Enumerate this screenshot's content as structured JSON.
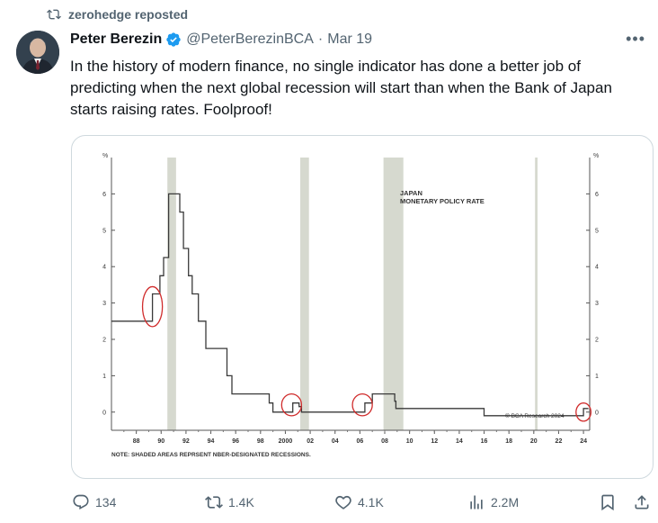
{
  "repost": {
    "text": "zerohedge reposted",
    "icon": "repost-icon"
  },
  "author": {
    "name": "Peter Berezin",
    "handle": "@PeterBerezinBCA",
    "separator": "·",
    "date": "Mar 19",
    "verified_color": "#1d9bf0"
  },
  "tweet": {
    "text": "In the history of modern finance, no single indicator has done a better job of predicting when the next global recession will start than when the Bank of Japan starts raising rates. Foolproof!"
  },
  "more_icon": "more-icon",
  "chart_data": {
    "type": "line",
    "title": "JAPAN MONETARY POLICY RATE",
    "unit_label": "%",
    "source": "© BCA Research 2024",
    "note": "NOTE: SHADED AREAS REPRSENT NBER-DESIGNATED RECESSIONS.",
    "xlim": [
      1986,
      2024.5
    ],
    "ylim": [
      -0.5,
      7
    ],
    "y_ticks": [
      0,
      1,
      2,
      3,
      4,
      5,
      6
    ],
    "x_tick_labels": [
      "88",
      "90",
      "92",
      "94",
      "96",
      "98",
      "2000",
      "02",
      "04",
      "06",
      "08",
      "10",
      "12",
      "14",
      "16",
      "18",
      "20",
      "22",
      "24"
    ],
    "x_tick_years": [
      1988,
      1990,
      1992,
      1994,
      1996,
      1998,
      2000,
      2002,
      2004,
      2006,
      2008,
      2010,
      2012,
      2014,
      2016,
      2018,
      2020,
      2022,
      2024
    ],
    "recessions": [
      [
        1990.5,
        1991.2
      ],
      [
        2001.2,
        2001.9
      ],
      [
        2007.9,
        2009.5
      ],
      [
        2020.1,
        2020.3
      ]
    ],
    "series": [
      {
        "color": "#3a3a3a",
        "x": [
          1986.0,
          1989.3,
          1989.3,
          1989.9,
          1989.9,
          1990.2,
          1990.2,
          1990.6,
          1990.6,
          1991.5,
          1991.5,
          1991.8,
          1991.8,
          1992.2,
          1992.2,
          1992.5,
          1992.5,
          1993.0,
          1993.0,
          1993.6,
          1993.6,
          1995.3,
          1995.3,
          1995.7,
          1995.7,
          1998.7,
          1998.7,
          1999.0,
          1999.0,
          2000.6,
          2000.6,
          2001.1,
          2001.1,
          2001.3,
          2001.3,
          2006.4,
          2006.4,
          2007.0,
          2007.0,
          2008.8,
          2008.8,
          2008.9,
          2008.9,
          2010.0,
          2010.0,
          2016.0,
          2016.0,
          2024.0,
          2024.0,
          2024.4
        ],
        "y": [
          2.5,
          2.5,
          3.25,
          3.25,
          3.75,
          3.75,
          4.25,
          4.25,
          6.0,
          6.0,
          5.5,
          5.5,
          4.5,
          4.5,
          3.75,
          3.75,
          3.25,
          3.25,
          2.5,
          2.5,
          1.75,
          1.75,
          1.0,
          1.0,
          0.5,
          0.5,
          0.25,
          0.25,
          0.0,
          0.0,
          0.25,
          0.25,
          0.15,
          0.15,
          0.0,
          0.0,
          0.25,
          0.25,
          0.5,
          0.5,
          0.3,
          0.3,
          0.1,
          0.1,
          0.1,
          0.1,
          -0.1,
          -0.1,
          0.1,
          0.1
        ]
      }
    ],
    "highlights": [
      {
        "x": 1989.3,
        "y": 2.9,
        "rx": 0.8,
        "ry": 0.55
      },
      {
        "x": 2000.5,
        "y": 0.2,
        "rx": 0.8,
        "ry": 0.3
      },
      {
        "x": 2006.2,
        "y": 0.2,
        "rx": 0.8,
        "ry": 0.3
      },
      {
        "x": 2024.0,
        "y": 0.0,
        "rx": 0.6,
        "ry": 0.25
      }
    ]
  },
  "actions": {
    "replies": "134",
    "reposts": "1.4K",
    "likes": "4.1K",
    "views": "2.2M"
  }
}
